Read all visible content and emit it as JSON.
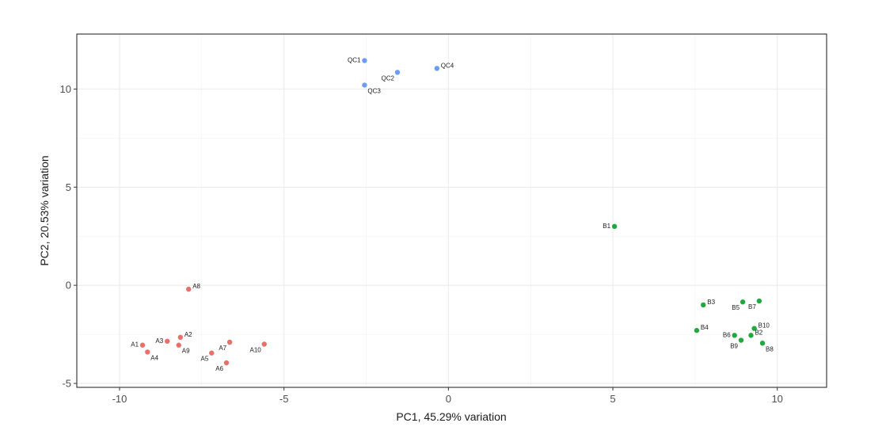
{
  "chart_data": {
    "type": "scatter",
    "title": "",
    "xlabel": "PC1, 45.29% variation",
    "ylabel": "PC2, 20.53% variation",
    "xlim": [
      -11.3,
      11.5
    ],
    "ylim": [
      -5.2,
      12.8
    ],
    "xticks": [
      -10,
      -5,
      0,
      5,
      10
    ],
    "xtick_labels": [
      "-10",
      "-5",
      "0",
      "5",
      "10"
    ],
    "yticks": [
      -5,
      0,
      5,
      10
    ],
    "ytick_labels": [
      "-5",
      "0",
      "5",
      "10"
    ],
    "grid": true,
    "legend": "none",
    "series": [
      {
        "name": "A",
        "color": "#e8706a",
        "points": [
          {
            "label": "A1",
            "x": -9.3,
            "y": -3.05,
            "label_side": "left"
          },
          {
            "label": "A2",
            "x": -8.15,
            "y": -2.65,
            "label_side": "right"
          },
          {
            "label": "A3",
            "x": -8.55,
            "y": -2.85,
            "label_side": "left"
          },
          {
            "label": "A4",
            "x": -9.15,
            "y": -3.4,
            "label_side": "below-right"
          },
          {
            "label": "A5",
            "x": -7.2,
            "y": -3.45,
            "label_side": "below-left"
          },
          {
            "label": "A6",
            "x": -6.75,
            "y": -3.95,
            "label_side": "below-left"
          },
          {
            "label": "A7",
            "x": -6.65,
            "y": -2.9,
            "label_side": "below-left"
          },
          {
            "label": "A8",
            "x": -7.9,
            "y": -0.2,
            "label_side": "right"
          },
          {
            "label": "A9",
            "x": -8.2,
            "y": -3.05,
            "label_side": "below-right"
          },
          {
            "label": "A10",
            "x": -5.6,
            "y": -3.0,
            "label_side": "below-left"
          }
        ]
      },
      {
        "name": "B",
        "color": "#1eaa3c",
        "points": [
          {
            "label": "B1",
            "x": 5.05,
            "y": 3.0,
            "label_side": "left"
          },
          {
            "label": "B2",
            "x": 9.2,
            "y": -2.55,
            "label_side": "right"
          },
          {
            "label": "B3",
            "x": 7.75,
            "y": -1.0,
            "label_side": "right"
          },
          {
            "label": "B4",
            "x": 7.55,
            "y": -2.3,
            "label_side": "right"
          },
          {
            "label": "B5",
            "x": 8.95,
            "y": -0.85,
            "label_side": "below-left"
          },
          {
            "label": "B6",
            "x": 8.7,
            "y": -2.55,
            "label_side": "left"
          },
          {
            "label": "B7",
            "x": 9.45,
            "y": -0.8,
            "label_side": "below-left"
          },
          {
            "label": "B8",
            "x": 9.55,
            "y": -2.95,
            "label_side": "below-right"
          },
          {
            "label": "B9",
            "x": 8.9,
            "y": -2.8,
            "label_side": "below-left"
          },
          {
            "label": "B10",
            "x": 9.3,
            "y": -2.2,
            "label_side": "right"
          }
        ]
      },
      {
        "name": "QC",
        "color": "#6a9ff0",
        "points": [
          {
            "label": "QC1",
            "x": -2.55,
            "y": 11.45,
            "label_side": "left"
          },
          {
            "label": "QC2",
            "x": -1.55,
            "y": 10.85,
            "label_side": "below-left"
          },
          {
            "label": "QC3",
            "x": -2.55,
            "y": 10.2,
            "label_side": "below-right"
          },
          {
            "label": "QC4",
            "x": -0.35,
            "y": 11.05,
            "label_side": "right"
          }
        ]
      }
    ]
  }
}
